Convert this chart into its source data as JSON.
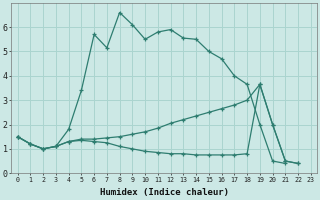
{
  "xlabel": "Humidex (Indice chaleur)",
  "bg_color": "#cce8e5",
  "line_color": "#2e7d70",
  "grid_color": "#aad4cf",
  "line1_x": [
    0,
    1,
    2,
    3,
    4,
    5,
    6,
    7,
    8,
    9,
    10,
    11,
    12,
    13,
    14,
    15,
    16,
    17,
    18,
    19,
    20,
    21,
    22,
    23
  ],
  "line1_y": [
    1.5,
    1.2,
    1.0,
    1.1,
    1.8,
    3.4,
    5.7,
    5.15,
    6.6,
    6.1,
    5.5,
    5.8,
    5.9,
    5.55,
    5.5,
    5.0,
    4.7,
    4.0,
    3.65,
    2.0,
    0.5,
    0.4,
    null,
    null
  ],
  "line2_x": [
    0,
    1,
    2,
    3,
    4,
    5,
    6,
    7,
    8,
    9,
    10,
    11,
    12,
    13,
    14,
    15,
    16,
    17,
    18,
    19,
    20,
    21,
    22,
    23
  ],
  "line2_y": [
    1.5,
    1.2,
    1.0,
    1.1,
    1.3,
    1.4,
    1.4,
    1.45,
    1.5,
    1.6,
    1.7,
    1.85,
    2.05,
    2.2,
    2.35,
    2.5,
    2.65,
    2.8,
    3.0,
    3.65,
    2.0,
    0.5,
    0.4,
    null
  ],
  "line3_x": [
    0,
    1,
    2,
    3,
    4,
    5,
    6,
    7,
    8,
    9,
    10,
    11,
    12,
    13,
    14,
    15,
    16,
    17,
    18,
    19,
    20,
    21,
    22,
    23
  ],
  "line3_y": [
    1.5,
    1.2,
    1.0,
    1.1,
    1.3,
    1.35,
    1.3,
    1.25,
    1.1,
    1.0,
    0.9,
    0.85,
    0.8,
    0.8,
    0.75,
    0.75,
    0.75,
    0.75,
    0.8,
    3.65,
    2.0,
    0.5,
    0.4,
    null
  ],
  "xlim": [
    -0.5,
    23.5
  ],
  "ylim": [
    0,
    7
  ],
  "yticks": [
    0,
    1,
    2,
    3,
    4,
    5,
    6
  ],
  "xticks": [
    0,
    1,
    2,
    3,
    4,
    5,
    6,
    7,
    8,
    9,
    10,
    11,
    12,
    13,
    14,
    15,
    16,
    17,
    18,
    19,
    20,
    21,
    22,
    23
  ]
}
